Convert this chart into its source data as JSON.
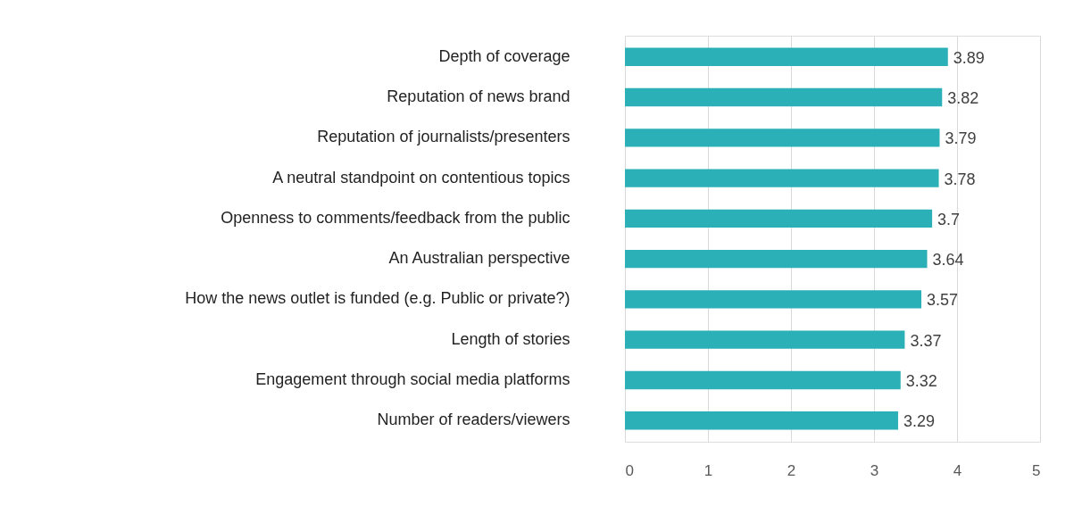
{
  "chart_data": {
    "type": "bar",
    "orientation": "horizontal",
    "categories": [
      "Depth of coverage",
      "Reputation of news brand",
      "Reputation of journalists/presenters",
      "A neutral standpoint on contentious topics",
      "Openness to comments/feedback from the public",
      "An Australian perspective",
      "How the news outlet is funded (e.g. Public or private?)",
      "Length of stories",
      "Engagement through social media platforms",
      "Number of readers/viewers"
    ],
    "values": [
      3.89,
      3.82,
      3.79,
      3.78,
      3.7,
      3.64,
      3.57,
      3.37,
      3.32,
      3.29
    ],
    "color": "#2ab0b6",
    "xlim": [
      0,
      5
    ],
    "xticks": [
      0,
      1,
      2,
      3,
      4,
      5
    ],
    "grid": "x",
    "data_labels": true
  }
}
